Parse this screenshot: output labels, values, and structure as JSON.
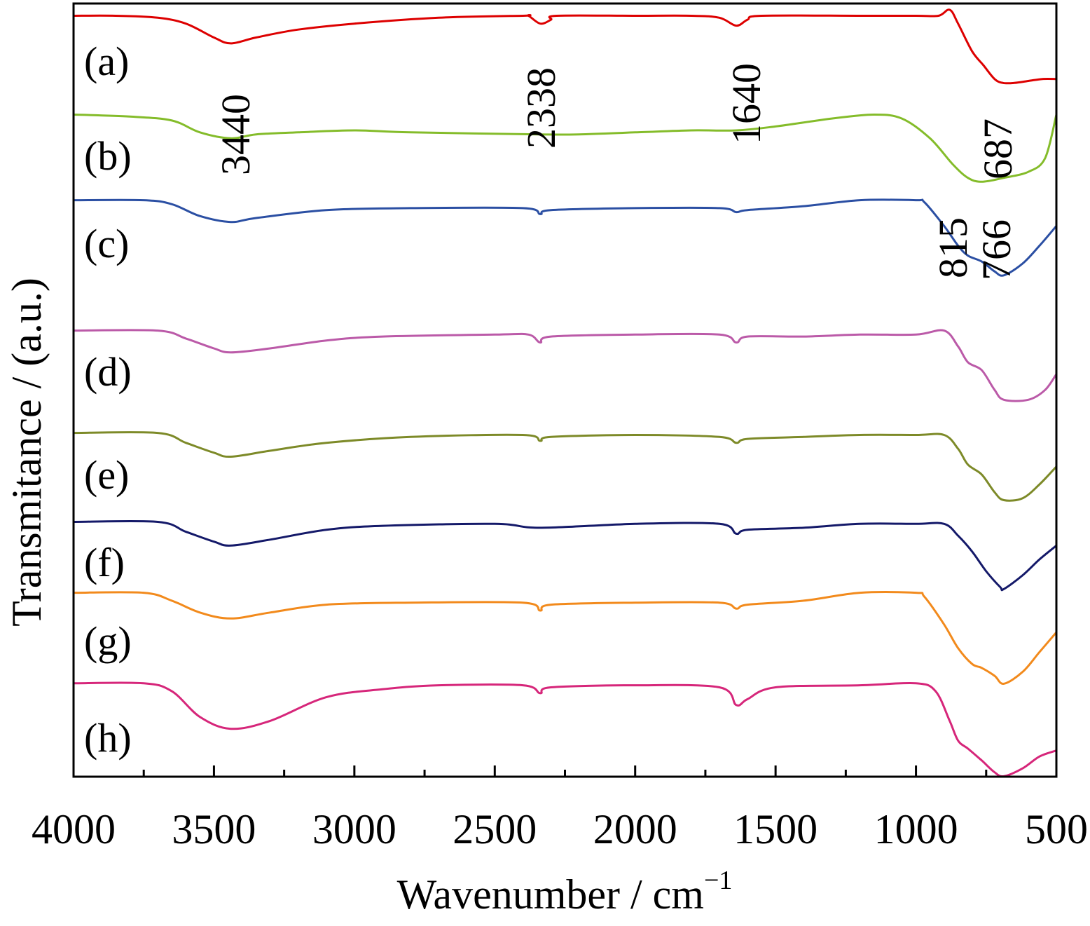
{
  "chart_data": {
    "type": "line",
    "title": "",
    "xlabel": "Wavenumber / cm",
    "xlabel_superscript": "−1",
    "ylabel": "Transmitance / (a.u.)",
    "xlim": [
      4000,
      500
    ],
    "x_reversed": true,
    "y_ticks_shown": false,
    "grid": false,
    "legend": "none",
    "x_ticks": [
      {
        "value": 4000,
        "label": "4000"
      },
      {
        "value": 3500,
        "label": "3500"
      },
      {
        "value": 3000,
        "label": "3000"
      },
      {
        "value": 2500,
        "label": "2500"
      },
      {
        "value": 2000,
        "label": "2000"
      },
      {
        "value": 1500,
        "label": "1500"
      },
      {
        "value": 1000,
        "label": "1000"
      },
      {
        "value": 500,
        "label": "500"
      }
    ],
    "x_minor_ticks": [
      3750,
      3250,
      2750,
      2250,
      1750,
      1250,
      750
    ],
    "series": [
      {
        "name": "(a)",
        "color": "#dd0000",
        "points": [
          [
            4000,
            0.97
          ],
          [
            3850,
            0.97
          ],
          [
            3700,
            0.96
          ],
          [
            3600,
            0.93
          ],
          [
            3500,
            0.86
          ],
          [
            3440,
            0.83
          ],
          [
            3350,
            0.86
          ],
          [
            3200,
            0.9
          ],
          [
            3000,
            0.93
          ],
          [
            2700,
            0.96
          ],
          [
            2400,
            0.97
          ],
          [
            2380,
            0.97
          ],
          [
            2338,
            0.93
          ],
          [
            2300,
            0.95
          ],
          [
            2280,
            0.97
          ],
          [
            2000,
            0.97
          ],
          [
            1800,
            0.97
          ],
          [
            1700,
            0.96
          ],
          [
            1640,
            0.92
          ],
          [
            1600,
            0.95
          ],
          [
            1550,
            0.97
          ],
          [
            1200,
            0.97
          ],
          [
            1000,
            0.97
          ],
          [
            920,
            0.97
          ],
          [
            880,
            1.0
          ],
          [
            850,
            0.93
          ],
          [
            800,
            0.79
          ],
          [
            760,
            0.72
          ],
          [
            720,
            0.65
          ],
          [
            690,
            0.63
          ],
          [
            650,
            0.63
          ],
          [
            600,
            0.64
          ],
          [
            550,
            0.65
          ],
          [
            500,
            0.65
          ]
        ]
      },
      {
        "name": "(b)",
        "color": "#84bc2a",
        "points": [
          [
            4000,
            0.97
          ],
          [
            3800,
            0.96
          ],
          [
            3650,
            0.94
          ],
          [
            3550,
            0.88
          ],
          [
            3440,
            0.85
          ],
          [
            3350,
            0.87
          ],
          [
            3200,
            0.88
          ],
          [
            3000,
            0.89
          ],
          [
            2800,
            0.88
          ],
          [
            2338,
            0.87
          ],
          [
            2200,
            0.87
          ],
          [
            2000,
            0.88
          ],
          [
            1800,
            0.89
          ],
          [
            1640,
            0.89
          ],
          [
            1500,
            0.91
          ],
          [
            1300,
            0.95
          ],
          [
            1150,
            0.97
          ],
          [
            1050,
            0.95
          ],
          [
            950,
            0.85
          ],
          [
            870,
            0.72
          ],
          [
            815,
            0.65
          ],
          [
            766,
            0.63
          ],
          [
            687,
            0.65
          ],
          [
            600,
            0.68
          ],
          [
            540,
            0.75
          ],
          [
            500,
            0.97
          ]
        ]
      },
      {
        "name": "(c)",
        "color": "#2b4fa3",
        "points": [
          [
            4000,
            0.98
          ],
          [
            3750,
            0.98
          ],
          [
            3650,
            0.96
          ],
          [
            3550,
            0.9
          ],
          [
            3440,
            0.87
          ],
          [
            3350,
            0.89
          ],
          [
            3100,
            0.93
          ],
          [
            2800,
            0.94
          ],
          [
            2400,
            0.94
          ],
          [
            2338,
            0.91
          ],
          [
            2300,
            0.93
          ],
          [
            2000,
            0.94
          ],
          [
            1700,
            0.94
          ],
          [
            1640,
            0.92
          ],
          [
            1600,
            0.93
          ],
          [
            1400,
            0.95
          ],
          [
            1200,
            0.98
          ],
          [
            1000,
            0.98
          ],
          [
            970,
            0.97
          ],
          [
            900,
            0.85
          ],
          [
            850,
            0.75
          ],
          [
            815,
            0.7
          ],
          [
            766,
            0.67
          ],
          [
            720,
            0.62
          ],
          [
            687,
            0.6
          ],
          [
            620,
            0.66
          ],
          [
            560,
            0.75
          ],
          [
            500,
            0.85
          ]
        ]
      },
      {
        "name": "(d)",
        "color": "#bb5aa8",
        "points": [
          [
            4000,
            0.98
          ],
          [
            3700,
            0.98
          ],
          [
            3600,
            0.94
          ],
          [
            3500,
            0.89
          ],
          [
            3440,
            0.87
          ],
          [
            3300,
            0.89
          ],
          [
            3100,
            0.93
          ],
          [
            2900,
            0.95
          ],
          [
            2500,
            0.96
          ],
          [
            2380,
            0.96
          ],
          [
            2338,
            0.92
          ],
          [
            2300,
            0.95
          ],
          [
            2000,
            0.96
          ],
          [
            1700,
            0.96
          ],
          [
            1640,
            0.92
          ],
          [
            1600,
            0.95
          ],
          [
            1400,
            0.95
          ],
          [
            1200,
            0.96
          ],
          [
            1000,
            0.96
          ],
          [
            900,
            0.98
          ],
          [
            850,
            0.9
          ],
          [
            815,
            0.82
          ],
          [
            766,
            0.78
          ],
          [
            720,
            0.68
          ],
          [
            687,
            0.63
          ],
          [
            600,
            0.63
          ],
          [
            540,
            0.68
          ],
          [
            500,
            0.76
          ]
        ]
      },
      {
        "name": "(e)",
        "color": "#7d8a28",
        "points": [
          [
            4000,
            0.98
          ],
          [
            3700,
            0.98
          ],
          [
            3600,
            0.93
          ],
          [
            3500,
            0.88
          ],
          [
            3440,
            0.86
          ],
          [
            3300,
            0.89
          ],
          [
            3100,
            0.93
          ],
          [
            2800,
            0.96
          ],
          [
            2400,
            0.97
          ],
          [
            2338,
            0.94
          ],
          [
            2300,
            0.96
          ],
          [
            2000,
            0.97
          ],
          [
            1700,
            0.96
          ],
          [
            1640,
            0.93
          ],
          [
            1600,
            0.95
          ],
          [
            1400,
            0.96
          ],
          [
            1200,
            0.97
          ],
          [
            1000,
            0.97
          ],
          [
            900,
            0.97
          ],
          [
            850,
            0.9
          ],
          [
            815,
            0.82
          ],
          [
            766,
            0.77
          ],
          [
            720,
            0.68
          ],
          [
            687,
            0.64
          ],
          [
            620,
            0.65
          ],
          [
            560,
            0.72
          ],
          [
            500,
            0.81
          ]
        ]
      },
      {
        "name": "(f)",
        "color": "#141969",
        "points": [
          [
            4000,
            0.97
          ],
          [
            3700,
            0.97
          ],
          [
            3600,
            0.92
          ],
          [
            3500,
            0.87
          ],
          [
            3440,
            0.85
          ],
          [
            3300,
            0.88
          ],
          [
            3100,
            0.93
          ],
          [
            2900,
            0.95
          ],
          [
            2500,
            0.96
          ],
          [
            2338,
            0.94
          ],
          [
            2000,
            0.96
          ],
          [
            1700,
            0.96
          ],
          [
            1640,
            0.91
          ],
          [
            1600,
            0.93
          ],
          [
            1400,
            0.94
          ],
          [
            1200,
            0.96
          ],
          [
            1000,
            0.96
          ],
          [
            900,
            0.96
          ],
          [
            850,
            0.9
          ],
          [
            800,
            0.82
          ],
          [
            750,
            0.72
          ],
          [
            700,
            0.64
          ],
          [
            687,
            0.63
          ],
          [
            620,
            0.7
          ],
          [
            560,
            0.78
          ],
          [
            500,
            0.85
          ]
        ]
      },
      {
        "name": "(g)",
        "color": "#f28a1c",
        "points": [
          [
            4000,
            0.98
          ],
          [
            3750,
            0.98
          ],
          [
            3650,
            0.94
          ],
          [
            3550,
            0.88
          ],
          [
            3440,
            0.85
          ],
          [
            3300,
            0.88
          ],
          [
            3100,
            0.92
          ],
          [
            2800,
            0.93
          ],
          [
            2400,
            0.93
          ],
          [
            2338,
            0.89
          ],
          [
            2300,
            0.92
          ],
          [
            2000,
            0.93
          ],
          [
            1700,
            0.93
          ],
          [
            1640,
            0.9
          ],
          [
            1600,
            0.92
          ],
          [
            1400,
            0.94
          ],
          [
            1200,
            0.98
          ],
          [
            1000,
            0.98
          ],
          [
            970,
            0.96
          ],
          [
            900,
            0.82
          ],
          [
            850,
            0.7
          ],
          [
            800,
            0.62
          ],
          [
            766,
            0.6
          ],
          [
            720,
            0.56
          ],
          [
            687,
            0.52
          ],
          [
            620,
            0.58
          ],
          [
            560,
            0.68
          ],
          [
            500,
            0.78
          ]
        ]
      },
      {
        "name": "(h)",
        "color": "#d6267a",
        "points": [
          [
            4000,
            0.99
          ],
          [
            3750,
            0.99
          ],
          [
            3650,
            0.95
          ],
          [
            3550,
            0.82
          ],
          [
            3440,
            0.76
          ],
          [
            3300,
            0.8
          ],
          [
            3100,
            0.92
          ],
          [
            2900,
            0.96
          ],
          [
            2700,
            0.98
          ],
          [
            2400,
            0.98
          ],
          [
            2338,
            0.94
          ],
          [
            2300,
            0.97
          ],
          [
            2000,
            0.98
          ],
          [
            1700,
            0.97
          ],
          [
            1640,
            0.88
          ],
          [
            1600,
            0.91
          ],
          [
            1500,
            0.97
          ],
          [
            1200,
            0.98
          ],
          [
            1000,
            0.99
          ],
          [
            930,
            0.95
          ],
          [
            880,
            0.8
          ],
          [
            850,
            0.7
          ],
          [
            815,
            0.66
          ],
          [
            766,
            0.6
          ],
          [
            720,
            0.54
          ],
          [
            687,
            0.52
          ],
          [
            620,
            0.56
          ],
          [
            560,
            0.62
          ],
          [
            500,
            0.65
          ]
        ]
      }
    ],
    "annotations": [
      {
        "text": "3440",
        "x": 3440
      },
      {
        "text": "2338",
        "x": 2338
      },
      {
        "text": "1640",
        "x": 1640
      },
      {
        "text": "687",
        "x": 687
      },
      {
        "text": "815",
        "x": 815
      },
      {
        "text": "766",
        "x": 766
      }
    ]
  }
}
